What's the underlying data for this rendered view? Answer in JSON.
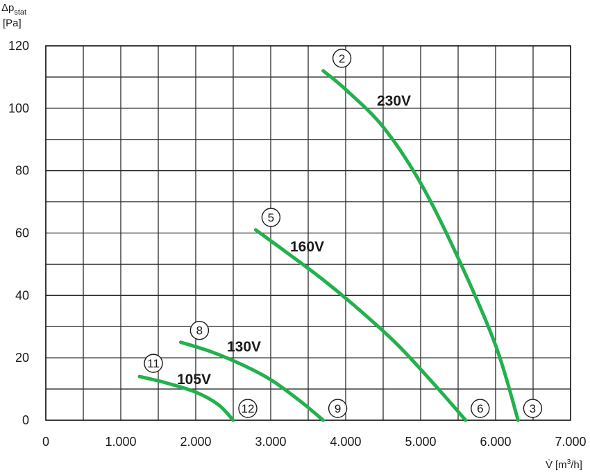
{
  "chart_data": {
    "type": "line",
    "ylabel": {
      "symbol": "Δp",
      "subscript": "stat",
      "unit": "[Pa]"
    },
    "xlabel": {
      "symbol": "V̇",
      "unit_prefix": "[m",
      "unit_sup": "3",
      "unit_suffix": "/h]"
    },
    "xlim": [
      0,
      7000
    ],
    "ylim": [
      0,
      120
    ],
    "x_major_ticks": [
      0,
      1000,
      2000,
      3000,
      4000,
      5000,
      6000,
      7000
    ],
    "x_tick_labels": [
      "0",
      "1.000",
      "2.000",
      "3.000",
      "4.000",
      "5.000",
      "6.000",
      "7.000"
    ],
    "y_major_ticks": [
      0,
      20,
      40,
      60,
      80,
      100,
      120
    ],
    "y_tick_labels": [
      "0",
      "20",
      "40",
      "60",
      "80",
      "100",
      "120"
    ],
    "grid": true,
    "grid_x_step": 500,
    "grid_y_step": 10,
    "line_color": "#22b14c",
    "series": [
      {
        "name": "230V",
        "start_marker": "2",
        "end_marker": "3",
        "points": [
          [
            3700,
            112
          ],
          [
            4000,
            106
          ],
          [
            4500,
            94
          ],
          [
            5000,
            76
          ],
          [
            5500,
            52
          ],
          [
            6000,
            24
          ],
          [
            6300,
            0
          ]
        ]
      },
      {
        "name": "160V",
        "start_marker": "5",
        "end_marker": "6",
        "points": [
          [
            2800,
            61
          ],
          [
            3200,
            54
          ],
          [
            3700,
            45
          ],
          [
            4200,
            35
          ],
          [
            4700,
            24
          ],
          [
            5200,
            11
          ],
          [
            5600,
            0
          ]
        ]
      },
      {
        "name": "130V",
        "start_marker": "8",
        "end_marker": "9",
        "points": [
          [
            1800,
            25
          ],
          [
            2200,
            22
          ],
          [
            2600,
            18
          ],
          [
            3000,
            13
          ],
          [
            3400,
            6
          ],
          [
            3700,
            0
          ]
        ]
      },
      {
        "name": "105V",
        "start_marker": "11",
        "end_marker": "12",
        "points": [
          [
            1250,
            14
          ],
          [
            1600,
            12
          ],
          [
            2000,
            9
          ],
          [
            2300,
            5
          ],
          [
            2500,
            0
          ]
        ]
      }
    ]
  }
}
